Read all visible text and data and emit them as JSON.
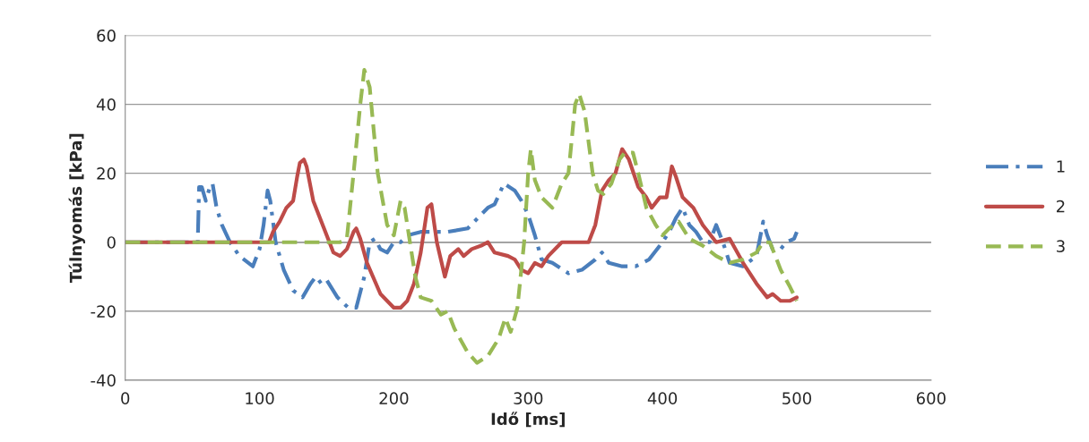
{
  "chart_data": {
    "type": "line",
    "xlabel": "Idő [ms]",
    "ylabel": "Túlnyomás [kPa]",
    "xlim": [
      0,
      600
    ],
    "xticks": [
      0,
      100,
      200,
      300,
      400,
      500,
      600
    ],
    "ylim": [
      -40,
      60
    ],
    "yticks": [
      -40,
      -20,
      0,
      20,
      40,
      60
    ],
    "grid": "y",
    "legend": "right",
    "marker": "none",
    "series": [
      {
        "name": "1",
        "color": "#4a7ebb",
        "line_style": "dashdot",
        "x": [
          0,
          54,
          55,
          57,
          60,
          63,
          65,
          68,
          72,
          78,
          85,
          95,
          100,
          103,
          106,
          108,
          112,
          118,
          125,
          132,
          138,
          142,
          146,
          150,
          158,
          166,
          172,
          178,
          182,
          186,
          190,
          195,
          200,
          205,
          210,
          220,
          240,
          255,
          265,
          270,
          275,
          282,
          290,
          295,
          300,
          305,
          310,
          318,
          330,
          340,
          350,
          355,
          360,
          370,
          380,
          390,
          400,
          405,
          410,
          415,
          420,
          425,
          430,
          435,
          440,
          445,
          450,
          460,
          470,
          475,
          478,
          482,
          488,
          492,
          498,
          500
        ],
        "values": [
          0,
          0,
          16,
          16,
          12,
          16,
          17,
          10,
          5,
          0,
          -4,
          -7,
          -2,
          5,
          15,
          12,
          0,
          -8,
          -14,
          -16,
          -12,
          -10,
          -12,
          -11,
          -16,
          -19,
          -19,
          -10,
          0,
          1,
          -2,
          -3,
          0,
          0,
          2,
          3,
          3,
          4,
          8,
          10,
          11,
          17,
          15,
          12,
          8,
          2,
          -5,
          -6,
          -9,
          -8,
          -5,
          -3,
          -6,
          -7,
          -7,
          -5,
          0,
          3,
          7,
          10,
          5,
          3,
          0,
          0,
          5,
          0,
          -6,
          -7,
          -4,
          6,
          2,
          -2,
          -2,
          0,
          1,
          3
        ]
      },
      {
        "name": "2",
        "color": "#be4b48",
        "line_style": "solid",
        "x": [
          0,
          107,
          110,
          115,
          120,
          125,
          128,
          130,
          133,
          135,
          140,
          148,
          155,
          160,
          165,
          170,
          172,
          175,
          180,
          190,
          200,
          205,
          210,
          215,
          220,
          225,
          228,
          232,
          238,
          242,
          248,
          252,
          258,
          265,
          270,
          275,
          285,
          290,
          295,
          300,
          305,
          310,
          315,
          325,
          332,
          340,
          345,
          350,
          355,
          360,
          365,
          370,
          375,
          382,
          388,
          392,
          398,
          403,
          407,
          410,
          415,
          423,
          430,
          440,
          450,
          460,
          470,
          478,
          482,
          488,
          495,
          500
        ],
        "values": [
          0,
          0,
          3,
          6,
          10,
          12,
          19,
          23,
          24,
          22,
          12,
          4,
          -3,
          -4,
          -2,
          3,
          4,
          1,
          -6,
          -15,
          -19,
          -19,
          -17,
          -12,
          -3,
          10,
          11,
          0,
          -10,
          -4,
          -2,
          -4,
          -2,
          -1,
          0,
          -3,
          -4,
          -5,
          -8,
          -9,
          -6,
          -7,
          -4,
          0,
          0,
          0,
          0,
          5,
          15,
          18,
          20,
          27,
          24,
          16,
          13,
          10,
          13,
          13,
          22,
          19,
          13,
          10,
          5,
          0,
          1,
          -6,
          -12,
          -16,
          -15,
          -17,
          -17,
          -16
        ]
      },
      {
        "name": "3",
        "color": "#98b954",
        "line_style": "dashed",
        "x": [
          0,
          160,
          165,
          170,
          175,
          178,
          182,
          188,
          195,
          200,
          205,
          208,
          212,
          216,
          220,
          228,
          235,
          240,
          245,
          255,
          262,
          270,
          278,
          283,
          287,
          292,
          297,
          300,
          302,
          305,
          310,
          318,
          325,
          330,
          335,
          338,
          342,
          348,
          352,
          356,
          362,
          368,
          372,
          378,
          382,
          388,
          395,
          400,
          405,
          412,
          420,
          430,
          440,
          450,
          460,
          470,
          475,
          480,
          488,
          495,
          500
        ],
        "values": [
          0,
          0,
          1,
          20,
          40,
          50,
          45,
          20,
          5,
          2,
          12,
          10,
          0,
          -10,
          -16,
          -17,
          -21,
          -20,
          -25,
          -32,
          -35,
          -33,
          -28,
          -22,
          -26,
          -19,
          0,
          20,
          27,
          18,
          13,
          10,
          17,
          20,
          40,
          43,
          38,
          20,
          15,
          14,
          17,
          24,
          26,
          26,
          20,
          10,
          5,
          2,
          4,
          6,
          1,
          -1,
          -4,
          -6,
          -5,
          -3,
          0,
          0,
          -8,
          -13,
          -17
        ]
      }
    ]
  }
}
